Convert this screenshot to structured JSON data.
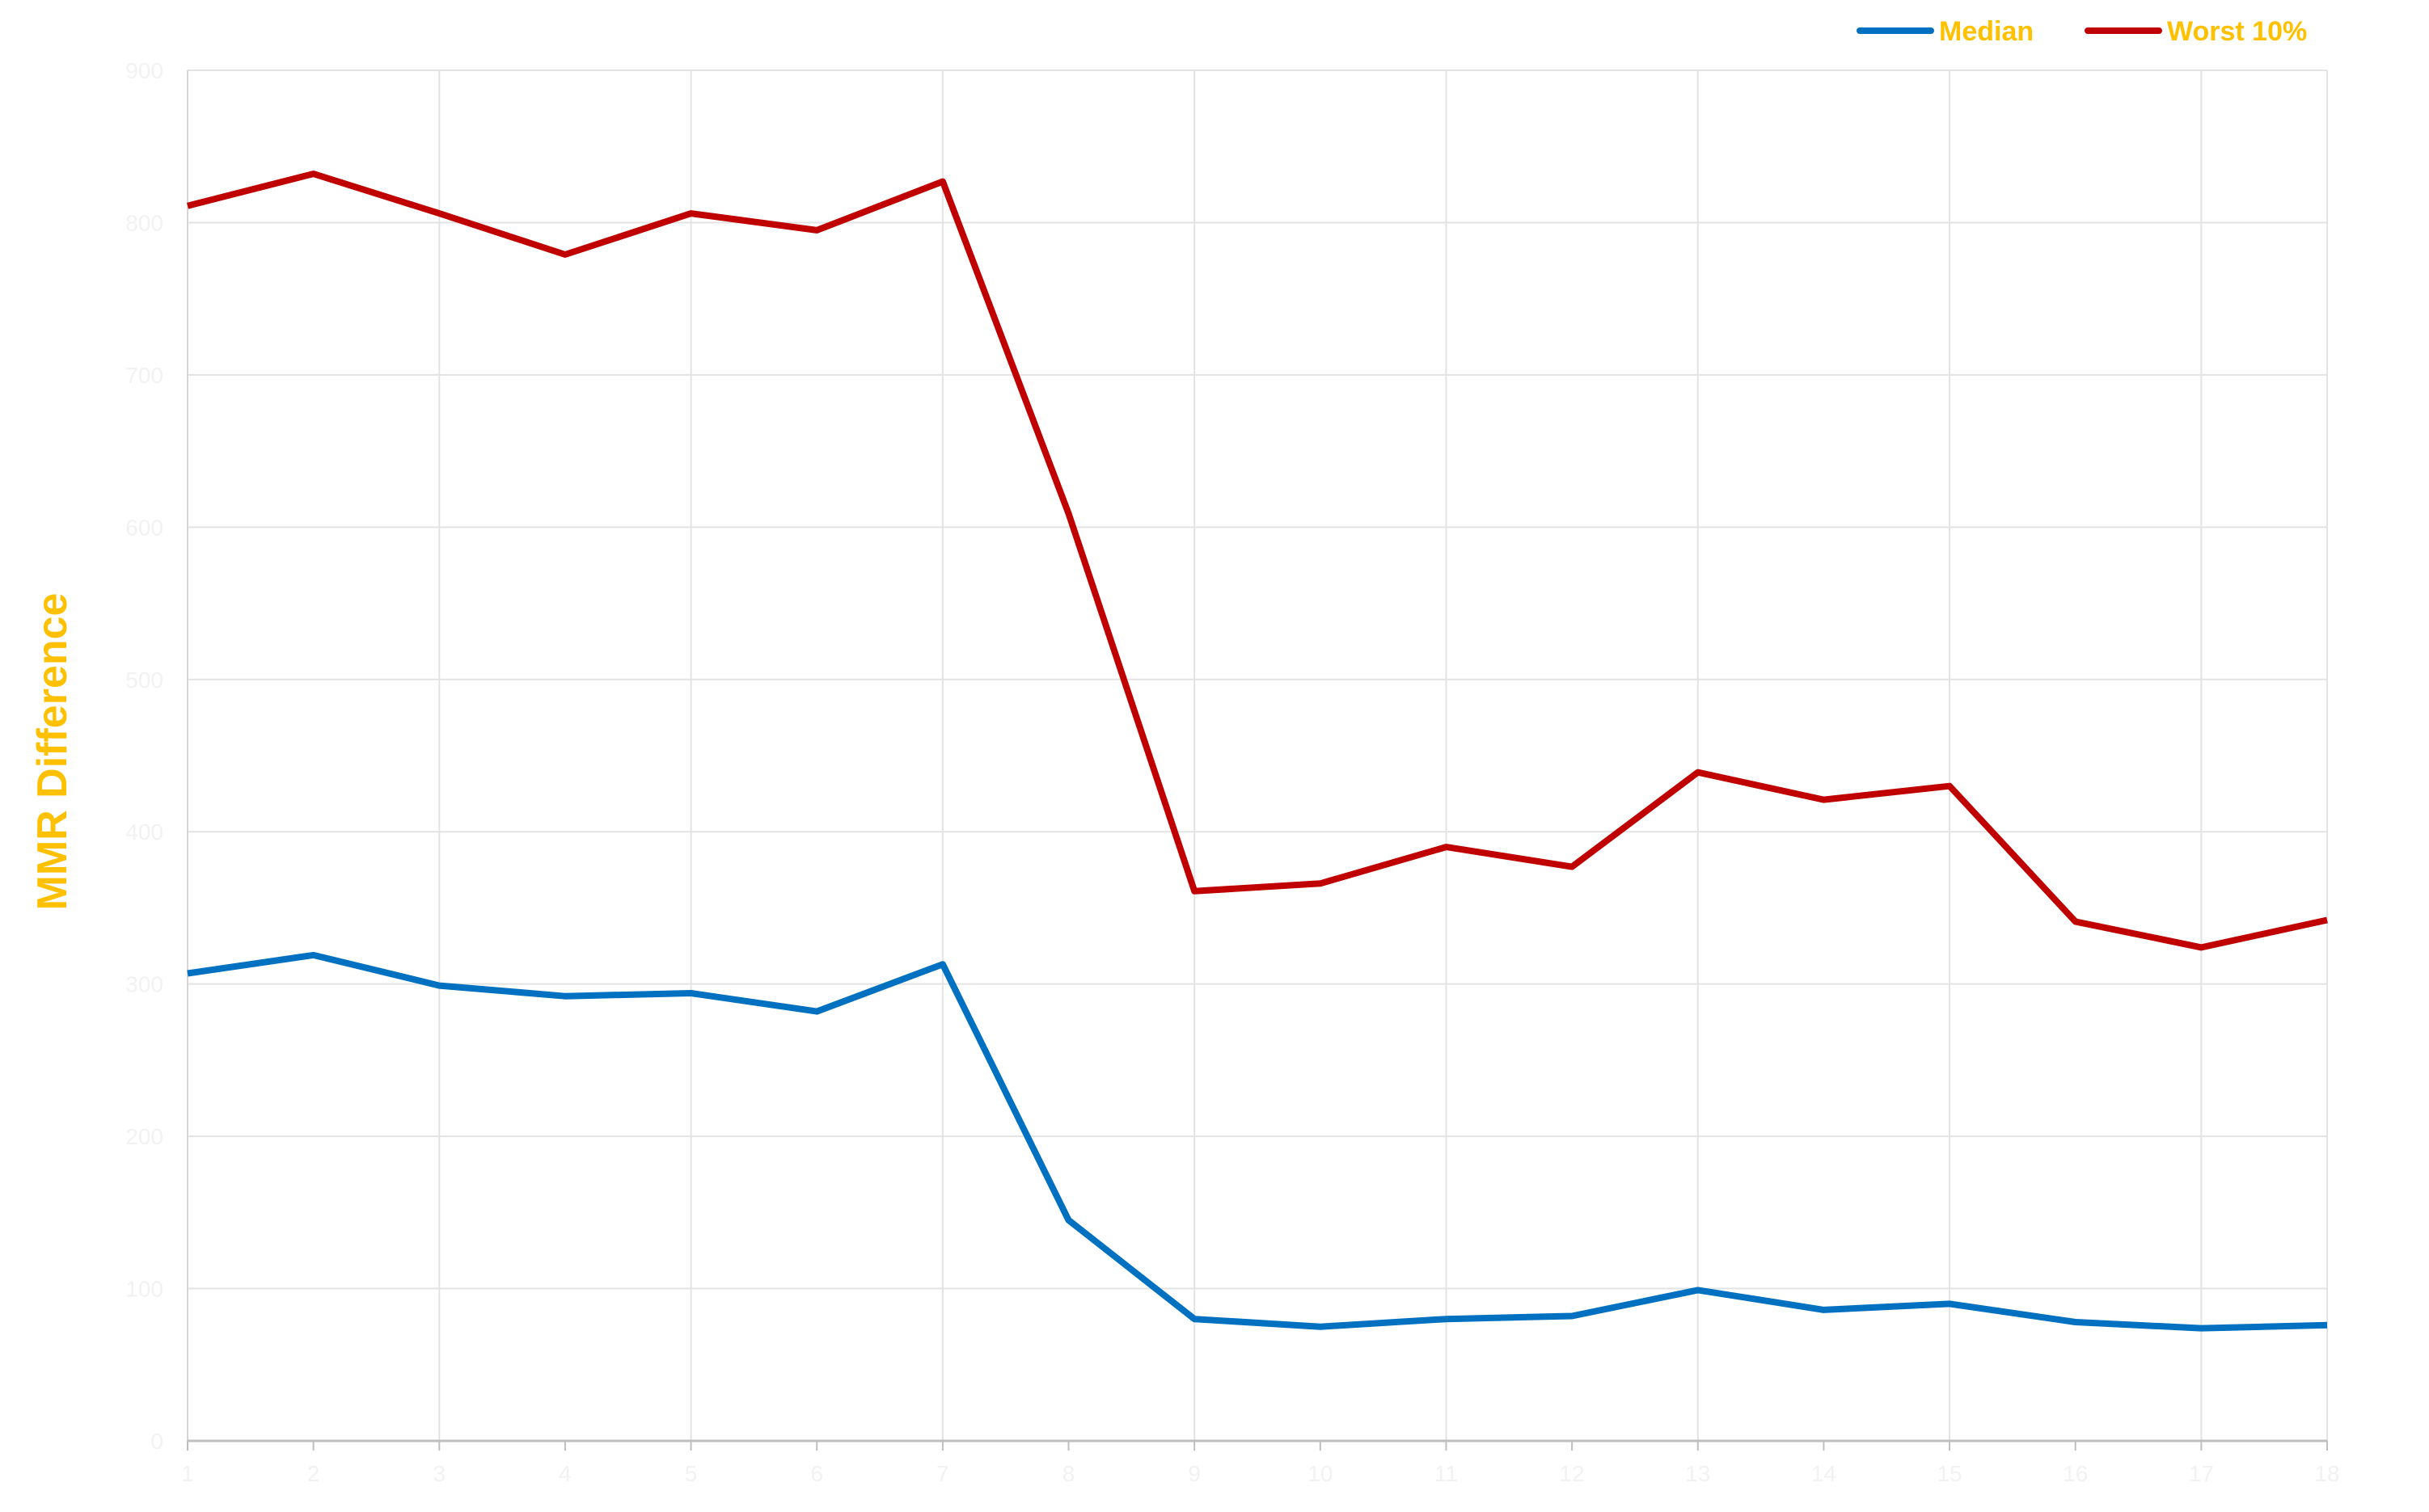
{
  "chart_data": {
    "type": "line",
    "title": "",
    "xlabel": "",
    "ylabel": "MMR Difference",
    "x": [
      1,
      2,
      3,
      4,
      5,
      6,
      7,
      8,
      9,
      10,
      11,
      12,
      13,
      14,
      15,
      16,
      17,
      18
    ],
    "ylim": [
      0,
      900
    ],
    "yticks": [
      0,
      100,
      200,
      300,
      400,
      500,
      600,
      700,
      800,
      900
    ],
    "grid": true,
    "legend_position": "top-right",
    "series": [
      {
        "name": "Median",
        "color": "#0070C0",
        "values": [
          307,
          319,
          299,
          292,
          294,
          282,
          313,
          145,
          80,
          75,
          80,
          82,
          99,
          86,
          90,
          78,
          74,
          76
        ]
      },
      {
        "name": "Worst 10%",
        "color": "#C00000",
        "values": [
          811,
          832,
          806,
          779,
          806,
          795,
          827,
          609,
          361,
          366,
          390,
          377,
          439,
          421,
          430,
          341,
          324,
          342
        ]
      }
    ]
  }
}
